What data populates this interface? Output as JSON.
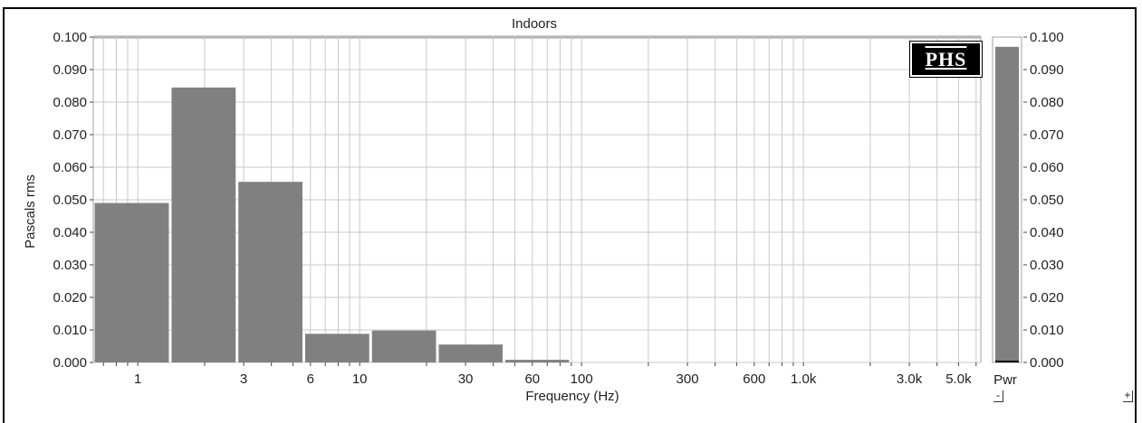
{
  "chart_data": {
    "type": "bar",
    "title": "Indoors",
    "xlabel": "Frequency (Hz)",
    "ylabel": "Pascals rms",
    "x_scale": "log",
    "xlim": [
      0.63,
      6300
    ],
    "ylim": [
      0,
      0.1
    ],
    "grid": true,
    "yticks": [
      "0.000",
      "0.010",
      "0.020",
      "0.030",
      "0.040",
      "0.050",
      "0.060",
      "0.070",
      "0.080",
      "0.090",
      "0.100"
    ],
    "xticks": [
      {
        "value": 1,
        "label": "1"
      },
      {
        "value": 3,
        "label": "3"
      },
      {
        "value": 6,
        "label": "6"
      },
      {
        "value": 10,
        "label": "10"
      },
      {
        "value": 30,
        "label": "30"
      },
      {
        "value": 60,
        "label": "60"
      },
      {
        "value": 100,
        "label": "100"
      },
      {
        "value": 300,
        "label": "300"
      },
      {
        "value": 600,
        "label": "600"
      },
      {
        "value": 1000,
        "label": "1.0k"
      },
      {
        "value": 3000,
        "label": "3.0k"
      },
      {
        "value": 5000,
        "label": "5.0k"
      }
    ],
    "bars": [
      {
        "from": 0.63,
        "to": 1.4,
        "value": 0.049
      },
      {
        "from": 1.4,
        "to": 2.8,
        "value": 0.0845
      },
      {
        "from": 2.8,
        "to": 5.6,
        "value": 0.0555
      },
      {
        "from": 5.6,
        "to": 11.2,
        "value": 0.0088
      },
      {
        "from": 11.2,
        "to": 22.4,
        "value": 0.0098
      },
      {
        "from": 22.4,
        "to": 44.7,
        "value": 0.0055
      },
      {
        "from": 44.7,
        "to": 89.1,
        "value": 0.0008
      }
    ],
    "bar_color": "#808080",
    "power_bar": {
      "label": "Pwr",
      "value": 0.097,
      "yticks": [
        "0.000",
        "0.010",
        "0.020",
        "0.030",
        "0.040",
        "0.050",
        "0.060",
        "0.070",
        "0.080",
        "0.090",
        "0.100"
      ]
    }
  },
  "logo": "PHS",
  "controls": {
    "minus": "-",
    "plus": "+"
  }
}
